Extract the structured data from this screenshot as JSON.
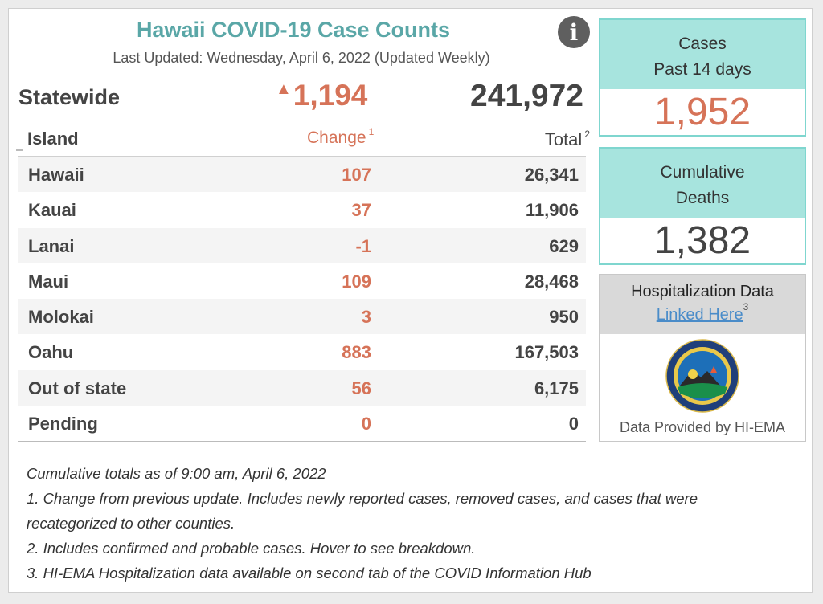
{
  "header": {
    "title": "Hawaii COVID-19 Case Counts",
    "subtitle": "Last Updated: Wednesday, April 6, 2022 (Updated Weekly)",
    "info_icon": "info-icon"
  },
  "statewide": {
    "label": "Statewide",
    "change": "1,194",
    "change_trend": "up",
    "total": "241,972"
  },
  "table": {
    "columns": {
      "island": "Island",
      "change": "Change",
      "change_footnote": "1",
      "total": "Total",
      "total_footnote": "2"
    },
    "rows": [
      {
        "name": "Hawaii",
        "change": "107",
        "total": "26,341"
      },
      {
        "name": "Kauai",
        "change": "37",
        "total": "11,906"
      },
      {
        "name": "Lanai",
        "change": "-1",
        "total": "629"
      },
      {
        "name": "Maui",
        "change": "109",
        "total": "28,468"
      },
      {
        "name": "Molokai",
        "change": "3",
        "total": "950"
      },
      {
        "name": "Oahu",
        "change": "883",
        "total": "167,503"
      },
      {
        "name": "Out of state",
        "change": "56",
        "total": "6,175"
      },
      {
        "name": "Pending",
        "change": "0",
        "total": "0"
      }
    ]
  },
  "cases_card": {
    "line1": "Cases",
    "line2": "Past 14 days",
    "value": "1,952"
  },
  "deaths_card": {
    "line1": "Cumulative",
    "line2": "Deaths",
    "value": "1,382"
  },
  "hospitalization": {
    "title": "Hospitalization Data",
    "link_label": "Linked Here",
    "link_footnote": "3",
    "footer": "Data Provided by HI-EMA",
    "seal_icon": "hi-ema-seal-icon"
  },
  "notes": [
    "Cumulative totals as of 9:00 am, April 6, 2022",
    "1. Change from previous update. Includes newly reported cases, removed cases, and cases that were",
    "recategorized to other counties.",
    "2. Includes confirmed and probable cases. Hover to see breakdown.",
    "3. HI-EMA Hospitalization data available on second tab of the COVID Information Hub"
  ],
  "colors": {
    "title_teal": "#5aa7a7",
    "change_orange": "#d67358",
    "card_teal_fill": "#a7e4de",
    "card_teal_border": "#7fd6cf",
    "link_blue": "#4a8cc9"
  }
}
